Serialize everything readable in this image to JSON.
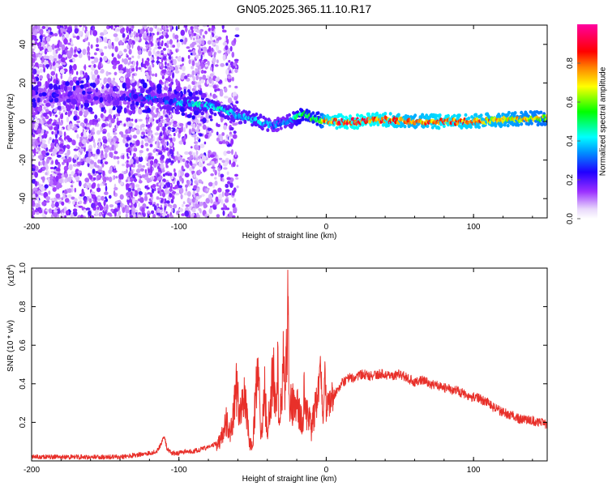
{
  "title": "GN05.2025.365.11.10.R17",
  "chart_data": [
    {
      "type": "heatmap",
      "panel": "spectrogram",
      "xlabel": "Height of straight line (km)",
      "ylabel": "Frequency (Hz)",
      "xlim": [
        -200,
        150
      ],
      "ylim": [
        -50,
        50
      ],
      "xticks": [
        -200,
        -100,
        0,
        100
      ],
      "yticks": [
        -40,
        -20,
        0,
        20,
        40
      ],
      "colorbar": {
        "label": "Normalized spectral amplitude",
        "range": [
          0.0,
          1.0
        ],
        "ticks": [
          0.0,
          0.2,
          0.4,
          0.6,
          0.8
        ],
        "colormap": "rainbow",
        "stops": [
          "#ffffff",
          "#e0c8f8",
          "#8000ff",
          "#0000ff",
          "#00ffff",
          "#00ff00",
          "#ffff00",
          "#ff8000",
          "#ff0000",
          "#ff00ff"
        ]
      },
      "ridge": {
        "description_units": "frequency (Hz) of main signal band vs height (km)",
        "x": [
          -200,
          -180,
          -160,
          -140,
          -130,
          -120,
          -110,
          -100,
          -90,
          -80,
          -70,
          -60,
          -50,
          -40,
          -35,
          -30,
          -25,
          -20,
          -15,
          -10,
          -5,
          0,
          20,
          40,
          60,
          80,
          100,
          120,
          150
        ],
        "y": [
          13,
          14,
          13,
          12,
          13,
          12,
          11,
          10,
          9,
          8,
          6,
          3,
          1,
          -1,
          -2,
          0,
          0,
          2,
          4,
          2,
          1,
          0,
          0,
          1,
          0,
          0,
          0,
          1,
          2
        ],
        "amplitude": [
          0.1,
          0.15,
          0.15,
          0.2,
          0.35,
          0.35,
          0.3,
          0.4,
          0.45,
          0.45,
          0.45,
          0.4,
          0.45,
          0.4,
          0.35,
          0.35,
          0.4,
          0.5,
          0.55,
          0.6,
          0.55,
          0.9,
          0.95,
          0.9,
          0.8,
          0.9,
          0.85,
          0.8,
          0.7
        ]
      }
    },
    {
      "type": "line",
      "panel": "snr",
      "xlabel": "Height of straight line (km)",
      "ylabel": "SNR (10 * v/v)",
      "scale_label": "(x10",
      "scale_exponent": "4",
      "scale_close": ")",
      "xlim": [
        -200,
        150
      ],
      "ylim": [
        0,
        1.0
      ],
      "xticks": [
        -200,
        -100,
        0,
        100
      ],
      "yticks": [
        0.2,
        0.4,
        0.6,
        0.8,
        1.0
      ],
      "ytick_labels": [
        "0.2",
        "0.4",
        "0.6",
        "0.8",
        "1.0"
      ],
      "color": "#e8302a",
      "series": [
        {
          "name": "SNR",
          "x": [
            -200,
            -180,
            -160,
            -140,
            -130,
            -120,
            -115,
            -112,
            -110,
            -108,
            -105,
            -100,
            -95,
            -90,
            -85,
            -80,
            -75,
            -72,
            -70,
            -68,
            -65,
            -63,
            -61,
            -60,
            -58,
            -56,
            -55,
            -52,
            -50,
            -48,
            -46,
            -44,
            -42,
            -40,
            -38,
            -36,
            -34,
            -33,
            -32,
            -30,
            -29,
            -28,
            -27,
            -26,
            -25,
            -24,
            -22,
            -20,
            -18,
            -16,
            -15,
            -14,
            -12,
            -10,
            -8,
            -6,
            -4,
            -2,
            -1,
            0,
            5,
            10,
            15,
            20,
            25,
            30,
            35,
            40,
            45,
            50,
            55,
            60,
            65,
            70,
            75,
            80,
            85,
            90,
            95,
            100,
            105,
            110,
            115,
            120,
            125,
            130,
            135,
            140,
            145,
            150
          ],
          "y": [
            0.02,
            0.02,
            0.02,
            0.02,
            0.03,
            0.04,
            0.05,
            0.09,
            0.13,
            0.06,
            0.04,
            0.04,
            0.05,
            0.05,
            0.06,
            0.07,
            0.09,
            0.14,
            0.2,
            0.28,
            0.18,
            0.35,
            0.5,
            0.45,
            0.3,
            0.45,
            0.4,
            0.12,
            0.1,
            0.45,
            0.55,
            0.15,
            0.5,
            0.2,
            0.4,
            0.65,
            0.3,
            0.7,
            0.2,
            0.5,
            0.72,
            0.45,
            0.8,
            1.0,
            0.3,
            0.45,
            0.35,
            0.4,
            0.3,
            0.25,
            0.45,
            0.35,
            0.3,
            0.22,
            0.33,
            0.38,
            0.55,
            0.18,
            0.5,
            0.28,
            0.34,
            0.4,
            0.43,
            0.43,
            0.45,
            0.44,
            0.45,
            0.45,
            0.44,
            0.45,
            0.43,
            0.41,
            0.42,
            0.4,
            0.39,
            0.38,
            0.37,
            0.36,
            0.34,
            0.33,
            0.32,
            0.3,
            0.27,
            0.25,
            0.24,
            0.22,
            0.21,
            0.21,
            0.2,
            0.19
          ]
        }
      ]
    }
  ]
}
